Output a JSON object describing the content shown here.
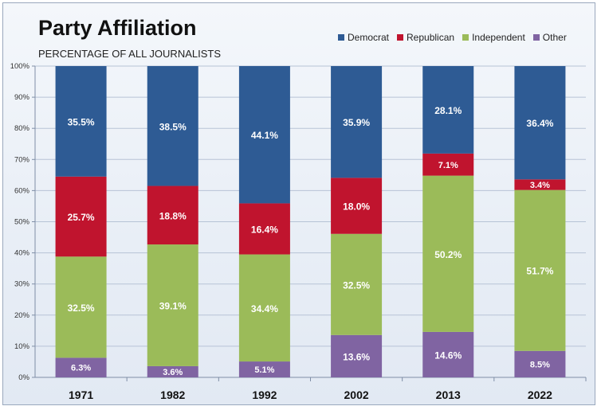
{
  "chart_data": {
    "type": "bar",
    "stacked": true,
    "title": "Party Affiliation",
    "subtitle": "PERCENTAGE OF ALL JOURNALISTS",
    "categories": [
      "1971",
      "1982",
      "1992",
      "2002",
      "2013",
      "2022"
    ],
    "series": [
      {
        "name": "Democrat",
        "color": "#2e5b94",
        "values": [
          35.5,
          38.5,
          44.1,
          35.9,
          28.1,
          36.4
        ],
        "labels": [
          "35.5%",
          "38.5%",
          "44.1%",
          "35.9%",
          "28.1%",
          "36.4%"
        ]
      },
      {
        "name": "Republican",
        "color": "#c0142e",
        "values": [
          25.7,
          18.8,
          16.4,
          18.0,
          7.1,
          3.4
        ],
        "labels": [
          "25.7%",
          "18.8%",
          "16.4%",
          "18.0%",
          "7.1%",
          "3.4%"
        ]
      },
      {
        "name": "Independent",
        "color": "#9bbb59",
        "values": [
          32.5,
          39.1,
          34.4,
          32.5,
          50.2,
          51.7
        ],
        "labels": [
          "32.5%",
          "39.1%",
          "34.4%",
          "32.5%",
          "50.2%",
          "51.7%"
        ]
      },
      {
        "name": "Other",
        "color": "#8064a2",
        "values": [
          6.3,
          3.6,
          5.1,
          13.6,
          14.6,
          8.5
        ],
        "labels": [
          "6.3%",
          "3.6%",
          "5.1%",
          "13.6%",
          "14.6%",
          "8.5%"
        ]
      }
    ],
    "stack_order_bottom_to_top": [
      "Other",
      "Independent",
      "Republican",
      "Democrat"
    ],
    "ylim": [
      0,
      100
    ],
    "yticks": [
      "0%",
      "10%",
      "20%",
      "30%",
      "40%",
      "50%",
      "60%",
      "70%",
      "80%",
      "90%",
      "100%"
    ],
    "grid": true,
    "legend_position": "top-right",
    "colors": {
      "grid": "#b7c3d6",
      "axis": "#7f8ea6"
    }
  }
}
